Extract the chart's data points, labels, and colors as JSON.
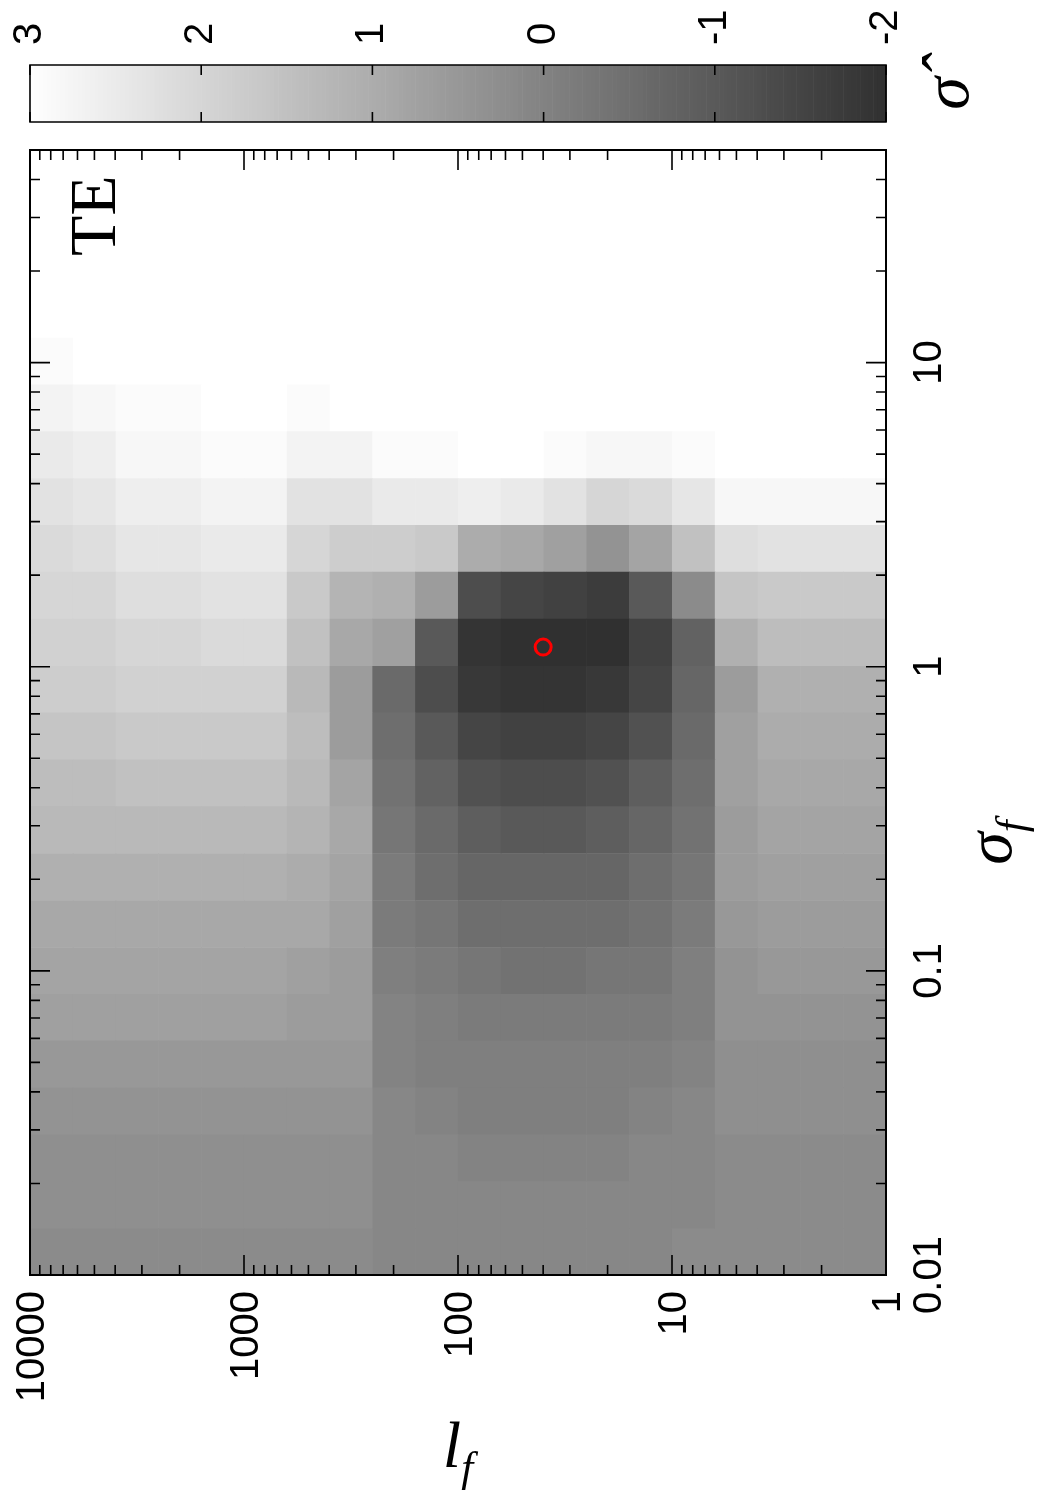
{
  "chart_data": {
    "type": "heatmap",
    "xlabel": "l$_{f}$",
    "ylabel": "σ$_{f}$",
    "clabel": "σ̂",
    "annotations": [
      "TE"
    ],
    "log": "xy",
    "xlim": [
      10000,
      1
    ],
    "ylim": [
      0.01,
      50
    ],
    "xticks": [
      10000,
      {
        "value": 9000,
        "label": null
      },
      {
        "value": 8000,
        "label": null
      },
      {
        "value": 7000,
        "label": null
      },
      {
        "value": 6000,
        "label": null
      },
      {
        "value": 5000,
        "label": null
      },
      {
        "value": 4000,
        "label": null
      },
      {
        "value": 3000,
        "label": null
      },
      {
        "value": 2000,
        "label": null
      },
      1000,
      {
        "value": 900,
        "label": null
      },
      {
        "value": 800,
        "label": null
      },
      {
        "value": 700,
        "label": null
      },
      {
        "value": 600,
        "label": null
      },
      {
        "value": 500,
        "label": null
      },
      {
        "value": 400,
        "label": null
      },
      {
        "value": 300,
        "label": null
      },
      {
        "value": 200,
        "label": null
      },
      100,
      {
        "value": 90,
        "label": null
      },
      {
        "value": 80,
        "label": null
      },
      {
        "value": 70,
        "label": null
      },
      {
        "value": 60,
        "label": null
      },
      {
        "value": 50,
        "label": null
      },
      {
        "value": 40,
        "label": null
      },
      {
        "value": 30,
        "label": null
      },
      {
        "value": 20,
        "label": null
      },
      10,
      {
        "value": 9,
        "label": null
      },
      {
        "value": 8,
        "label": null
      },
      {
        "value": 7,
        "label": null
      },
      {
        "value": 6,
        "label": null
      },
      {
        "value": 5,
        "label": null
      },
      {
        "value": 4,
        "label": null
      },
      {
        "value": 3,
        "label": null
      },
      {
        "value": 2,
        "label": null
      },
      1
    ],
    "yticks": [
      0.01,
      {
        "value": 0.02,
        "label": null
      },
      {
        "value": 0.03,
        "label": null
      },
      {
        "value": 0.04,
        "label": null
      },
      {
        "value": 0.05,
        "label": null
      },
      {
        "value": 0.06,
        "label": null
      },
      {
        "value": 0.07,
        "label": null
      },
      {
        "value": 0.08,
        "label": null
      },
      {
        "value": 0.09,
        "label": null
      },
      0.1,
      {
        "value": 0.2,
        "label": null
      },
      {
        "value": 0.3,
        "label": null
      },
      {
        "value": 0.4,
        "label": null
      },
      {
        "value": 0.5,
        "label": null
      },
      {
        "value": 0.6,
        "label": null
      },
      {
        "value": 0.7,
        "label": null
      },
      {
        "value": 0.8,
        "label": null
      },
      {
        "value": 0.9,
        "label": null
      },
      1,
      {
        "value": 2,
        "label": null
      },
      {
        "value": 3,
        "label": null
      },
      {
        "value": 4,
        "label": null
      },
      {
        "value": 5,
        "label": null
      },
      {
        "value": 6,
        "label": null
      },
      {
        "value": 7,
        "label": null
      },
      {
        "value": 8,
        "label": null
      },
      {
        "value": 9,
        "label": null
      },
      10,
      {
        "value": 20,
        "label": null
      },
      {
        "value": 30,
        "label": null
      },
      {
        "value": 40,
        "label": null
      }
    ],
    "clim": [
      3,
      -2
    ],
    "cticks": [
      3,
      2,
      1,
      0,
      -1,
      -2
    ],
    "x": [
      7940,
      5010,
      3160,
      2000,
      1260,
      794,
      501,
      316,
      200,
      126,
      79.4,
      50.1,
      31.6,
      20,
      12.6,
      7.94,
      5.01,
      3.16,
      2,
      1.26
    ],
    "y": [
      41.9,
      29.4,
      20.6,
      14.4,
      10.1,
      7.1,
      4.98,
      3.49,
      2.45,
      1.72,
      1.2,
      0.844,
      0.592,
      0.415,
      0.291,
      0.204,
      0.143,
      0.1,
      0.0704,
      0.0494,
      0.0346,
      0.0243,
      0.017,
      0.0119
    ],
    "cells": [
      [
        3,
        3,
        3,
        3,
        3,
        3,
        3,
        3,
        3,
        3,
        3,
        3,
        3,
        3,
        3,
        3,
        3,
        3,
        3,
        3
      ],
      [
        3,
        3,
        3,
        3,
        3,
        3,
        3,
        3,
        3,
        3,
        3,
        3,
        3,
        3,
        3,
        3,
        3,
        3,
        3,
        3
      ],
      [
        3,
        3,
        3,
        3,
        3,
        3,
        3,
        3,
        3,
        3,
        3,
        3,
        3,
        3,
        3,
        3,
        3,
        3,
        3,
        3
      ],
      [
        3,
        3,
        3,
        3,
        3,
        3,
        3,
        3,
        3,
        3,
        3,
        3,
        3,
        3,
        3,
        3,
        3,
        3,
        3,
        3
      ],
      [
        2.9,
        3,
        3,
        3,
        3,
        3,
        3,
        3,
        3,
        3,
        3,
        3,
        3,
        3,
        3,
        3,
        3,
        3,
        3,
        3
      ],
      [
        2.7,
        2.8,
        2.9,
        2.9,
        3,
        3,
        2.9,
        3,
        3,
        3,
        3,
        3,
        3,
        3,
        3,
        3,
        3,
        3,
        3,
        3
      ],
      [
        2.5,
        2.6,
        2.8,
        2.8,
        2.9,
        2.9,
        2.7,
        2.7,
        2.9,
        2.9,
        3,
        3,
        2.9,
        2.8,
        2.8,
        2.9,
        3,
        3,
        3,
        3
      ],
      [
        2.3,
        2.4,
        2.6,
        2.6,
        2.7,
        2.7,
        2.3,
        2.3,
        2.5,
        2.5,
        2.6,
        2.5,
        2.3,
        2.0,
        2.1,
        2.4,
        2.8,
        2.8,
        2.8,
        2.8
      ],
      [
        2.1,
        2.2,
        2.4,
        2.4,
        2.5,
        2.5,
        2.0,
        1.8,
        1.8,
        1.7,
        1.0,
        0.9,
        0.7,
        0.4,
        0.8,
        1.5,
        2.2,
        2.3,
        2.3,
        2.3
      ],
      [
        2.0,
        2.0,
        2.2,
        2.2,
        2.3,
        2.3,
        1.7,
        1.2,
        1.1,
        0.6,
        -1.3,
        -1.5,
        -1.6,
        -1.7,
        -1.0,
        0.2,
        1.6,
        1.7,
        1.7,
        1.7
      ],
      [
        1.9,
        1.9,
        2.0,
        2.0,
        2.1,
        2.1,
        1.5,
        0.9,
        0.7,
        -1.0,
        -1.9,
        -2.0,
        -2.0,
        -2.0,
        -1.6,
        -0.8,
        1.1,
        1.4,
        1.4,
        1.4
      ],
      [
        1.8,
        1.8,
        1.9,
        1.9,
        1.9,
        1.9,
        1.3,
        0.6,
        -0.6,
        -1.3,
        -1.8,
        -1.9,
        -1.9,
        -1.8,
        -1.5,
        -0.7,
        0.6,
        1.1,
        1.1,
        1.1
      ],
      [
        1.6,
        1.6,
        1.7,
        1.7,
        1.7,
        1.7,
        1.4,
        0.6,
        -0.5,
        -1.0,
        -1.5,
        -1.6,
        -1.6,
        -1.5,
        -1.2,
        -0.6,
        0.7,
        1.0,
        1.0,
        1.0
      ],
      [
        1.4,
        1.4,
        1.5,
        1.5,
        1.5,
        1.5,
        1.3,
        0.8,
        -0.4,
        -0.8,
        -1.2,
        -1.3,
        -1.3,
        -1.2,
        -0.9,
        -0.5,
        0.7,
        0.9,
        0.9,
        0.9
      ],
      [
        1.3,
        1.3,
        1.3,
        1.3,
        1.3,
        1.3,
        1.2,
        0.9,
        -0.3,
        -0.6,
        -0.9,
        -1.0,
        -1.0,
        -0.9,
        -0.7,
        -0.4,
        0.6,
        0.8,
        0.8,
        0.8
      ],
      [
        1.1,
        1.1,
        1.1,
        1.1,
        1.1,
        1.1,
        1.0,
        0.8,
        -0.2,
        -0.5,
        -0.7,
        -0.7,
        -0.7,
        -0.7,
        -0.5,
        -0.3,
        0.6,
        0.7,
        0.7,
        0.7
      ],
      [
        0.9,
        0.9,
        0.9,
        0.9,
        0.9,
        0.9,
        0.9,
        0.7,
        -0.2,
        -0.3,
        -0.5,
        -0.5,
        -0.5,
        -0.5,
        -0.4,
        -0.2,
        0.5,
        0.6,
        0.6,
        0.6
      ],
      [
        0.8,
        0.8,
        0.8,
        0.8,
        0.8,
        0.8,
        0.7,
        0.6,
        -0.1,
        -0.2,
        -0.3,
        -0.4,
        -0.4,
        -0.3,
        -0.3,
        -0.1,
        0.4,
        0.5,
        0.5,
        0.5
      ],
      [
        0.7,
        0.7,
        0.7,
        0.7,
        0.7,
        0.7,
        0.6,
        0.6,
        0.0,
        -0.1,
        -0.2,
        -0.2,
        -0.2,
        -0.2,
        -0.2,
        -0.1,
        0.4,
        0.4,
        0.4,
        0.4
      ],
      [
        0.5,
        0.5,
        0.5,
        0.5,
        0.5,
        0.5,
        0.5,
        0.5,
        0.0,
        -0.1,
        -0.1,
        -0.1,
        -0.1,
        -0.1,
        -0.1,
        0.0,
        0.3,
        0.3,
        0.3,
        0.3
      ],
      [
        0.4,
        0.4,
        0.4,
        0.4,
        0.4,
        0.4,
        0.4,
        0.4,
        0.1,
        0.0,
        -0.1,
        -0.1,
        -0.1,
        -0.1,
        0.0,
        0.1,
        0.3,
        0.3,
        0.3,
        0.3
      ],
      [
        0.3,
        0.3,
        0.3,
        0.3,
        0.3,
        0.3,
        0.3,
        0.3,
        0.1,
        0.1,
        0.0,
        0.0,
        0.0,
        0.0,
        0.1,
        0.1,
        0.2,
        0.2,
        0.2,
        0.2
      ],
      [
        0.3,
        0.3,
        0.3,
        0.3,
        0.3,
        0.3,
        0.3,
        0.3,
        0.1,
        0.1,
        0.1,
        0.1,
        0.1,
        0.1,
        0.1,
        0.1,
        0.2,
        0.2,
        0.2,
        0.2
      ],
      [
        0.2,
        0.2,
        0.2,
        0.2,
        0.2,
        0.2,
        0.2,
        0.2,
        0.1,
        0.1,
        0.1,
        0.1,
        0.1,
        0.1,
        0.1,
        0.2,
        0.2,
        0.2,
        0.2,
        0.2
      ]
    ],
    "marker": "circle",
    "series": [
      {
        "type": "scatter",
        "color": "#ff0000",
        "x": [
          40
        ],
        "values": [
          1.16
        ]
      }
    ]
  }
}
